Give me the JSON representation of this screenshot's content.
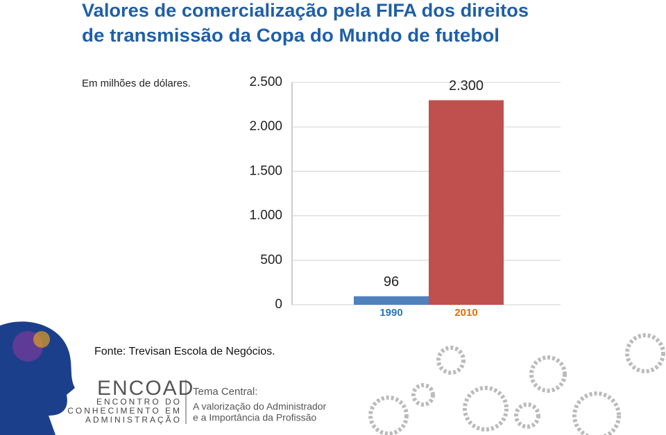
{
  "chart_data": {
    "type": "bar",
    "title": [
      "Valores de comercialização pela FIFA dos direitos",
      "de transmissão da Copa do Mundo de futebol"
    ],
    "subtitle": "Em milhões de dólares.",
    "categories": [
      "1990",
      "2010"
    ],
    "values": [
      96,
      2300
    ],
    "value_labels": [
      "96",
      "2.300"
    ],
    "colors": [
      "#4f81bd",
      "#c0504d"
    ],
    "category_label_colors": [
      "#2e74b5",
      "#e36c09"
    ],
    "ylim": [
      0,
      2500
    ],
    "yticks": [
      0,
      500,
      {
        "value": 1000,
        "label": "1.000"
      },
      {
        "value": 1500,
        "label": "1.500"
      },
      {
        "value": 2000,
        "label": "2.000"
      },
      {
        "value": 2500,
        "label": "2.500"
      }
    ],
    "grid": true,
    "source": "Fonte: Trevisan Escola de Negócios."
  },
  "footer": {
    "logo": "ENCOAD",
    "logo_lines": [
      "ENCONTRO DO",
      "CONHECIMENTO EM",
      "ADMINISTRAÇÃO"
    ],
    "theme_title": "Tema Central:",
    "theme_lines": [
      "A valorização do Administrador",
      "e a Importância da Profissão"
    ]
  }
}
